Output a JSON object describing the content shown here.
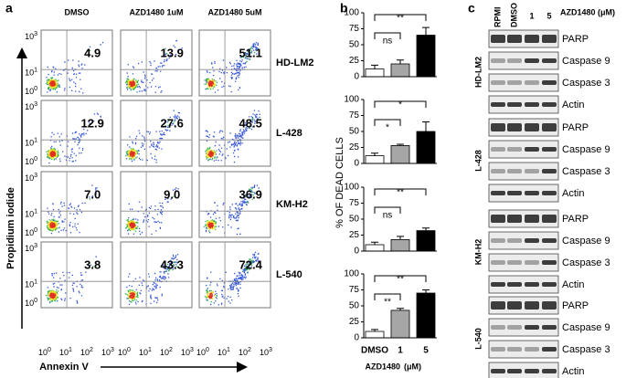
{
  "panels": {
    "a": "a",
    "b": "b",
    "c": "c"
  },
  "flow": {
    "conditions": [
      "DMSO",
      "AZD1480  1uM",
      "AZD1480  5uM"
    ],
    "cell_lines": [
      "HD-LM2",
      "L-428",
      "KM-H2",
      "L-540"
    ],
    "percent": [
      [
        "4.9",
        "13.9",
        "51.1"
      ],
      [
        "12.9",
        "27.6",
        "48.5"
      ],
      [
        "7.0",
        "9.0",
        "36.9"
      ],
      [
        "3.8",
        "43.3",
        "72.4"
      ]
    ],
    "y_label": "Propidium iodide",
    "x_label": "Annexin V",
    "tick_base": "10",
    "x_tick_exponents": [
      "0",
      "1",
      "2",
      "3"
    ],
    "y_tick_exponents": [
      "3",
      "1",
      "0"
    ]
  },
  "bar_axes": {
    "y_label": "% OF DEAD CELLS",
    "x_label": "AZD1480",
    "x_unit": "(μM)"
  },
  "chart_data": [
    {
      "type": "bar",
      "values": [
        12,
        20,
        65
      ],
      "errors": [
        6,
        6,
        12
      ],
      "colors": [
        "#ffffff",
        "#a6a6a6",
        "#000000"
      ],
      "ylim": [
        0,
        100
      ],
      "yticks": [
        0,
        25,
        50,
        75,
        100
      ],
      "annotations": [
        "ns",
        "**"
      ]
    },
    {
      "type": "bar",
      "values": [
        12,
        28,
        50
      ],
      "errors": [
        4,
        2,
        15
      ],
      "colors": [
        "#ffffff",
        "#a6a6a6",
        "#000000"
      ],
      "ylim": [
        0,
        100
      ],
      "yticks": [
        0,
        25,
        50,
        75,
        100
      ],
      "annotations": [
        "*",
        "*"
      ]
    },
    {
      "type": "bar",
      "values": [
        10,
        18,
        32
      ],
      "errors": [
        4,
        5,
        4
      ],
      "colors": [
        "#ffffff",
        "#a6a6a6",
        "#000000"
      ],
      "ylim": [
        0,
        100
      ],
      "yticks": [
        0,
        25,
        50,
        75,
        100
      ],
      "annotations": [
        "ns",
        "**"
      ]
    },
    {
      "type": "bar",
      "categories": [
        "DMSO",
        "1",
        "5"
      ],
      "values": [
        10,
        43,
        70
      ],
      "errors": [
        3,
        3,
        5
      ],
      "colors": [
        "#ffffff",
        "#a6a6a6",
        "#000000"
      ],
      "ylim": [
        0,
        100
      ],
      "yticks": [
        0,
        25,
        50,
        75,
        100
      ],
      "annotations": [
        "**",
        "**"
      ]
    }
  ],
  "blots": {
    "lane_labels": [
      "RPMI",
      "DMSO",
      "1",
      "5"
    ],
    "treatment": "AZD1480  (μM)",
    "proteins": [
      "PARP",
      "Caspase 9",
      "Caspase 3",
      "Actin"
    ]
  }
}
